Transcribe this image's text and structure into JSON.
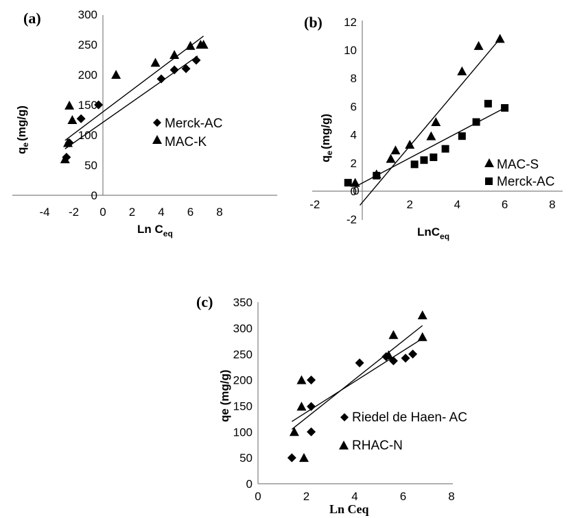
{
  "chart_data": [
    {
      "panel": "(a)",
      "type": "scatter",
      "xlim": [
        -4,
        8
      ],
      "ylim": [
        0,
        300
      ],
      "xticks": [
        -4,
        -2,
        0,
        2,
        4,
        6,
        8
      ],
      "yticks": [
        0,
        50,
        100,
        150,
        200,
        250,
        300
      ],
      "xlabel": "Ln C",
      "xlabel_sub": "eq",
      "ylabel": "q",
      "ylabel_sub": "e",
      "ylabel_rest": "(mg/g)",
      "series": [
        {
          "name": "Merck-AC",
          "marker": "diamond",
          "points": [
            [
              -2.5,
              63
            ],
            [
              -2.3,
              87
            ],
            [
              -1.5,
              127
            ],
            [
              -0.3,
              150
            ],
            [
              4.0,
              193
            ],
            [
              4.9,
              208
            ],
            [
              5.7,
              210
            ],
            [
              6.4,
              224
            ]
          ],
          "fit": [
            [
              -2.6,
              77
            ],
            [
              6.5,
              231
            ]
          ]
        },
        {
          "name": "MAC-K",
          "marker": "triangle",
          "points": [
            [
              -2.6,
              60
            ],
            [
              -2.4,
              87
            ],
            [
              -2.3,
              149
            ],
            [
              -2.1,
              125
            ],
            [
              0.9,
              200
            ],
            [
              3.6,
              220
            ],
            [
              4.9,
              233
            ],
            [
              6.0,
              248
            ],
            [
              6.7,
              250
            ],
            [
              6.9,
              250
            ]
          ],
          "fit": [
            [
              -2.6,
              91
            ],
            [
              6.9,
              264
            ]
          ]
        }
      ],
      "legend": "center-right"
    },
    {
      "panel": "(b)",
      "type": "scatter",
      "xlim": [
        -2,
        8
      ],
      "ylim": [
        -2,
        12
      ],
      "xticks": [
        -2,
        0,
        2,
        4,
        6,
        8
      ],
      "yticks": [
        -2,
        0,
        2,
        4,
        6,
        8,
        10,
        12
      ],
      "xlabel": "LnC",
      "xlabel_sub": "eq",
      "ylabel": "q",
      "ylabel_sub": "e",
      "ylabel_rest": "(mg/g)",
      "series": [
        {
          "name": "MAC-S",
          "marker": "triangle",
          "points": [
            [
              -0.3,
              0.6
            ],
            [
              0.6,
              1.2
            ],
            [
              1.2,
              2.3
            ],
            [
              1.4,
              2.9
            ],
            [
              2.0,
              3.3
            ],
            [
              2.9,
              3.9
            ],
            [
              3.1,
              4.9
            ],
            [
              4.2,
              8.5
            ],
            [
              4.9,
              10.3
            ],
            [
              5.8,
              10.8
            ]
          ],
          "fit": [
            [
              -0.1,
              -1.0
            ],
            [
              5.8,
              10.8
            ]
          ]
        },
        {
          "name": "Merck-AC",
          "marker": "square",
          "points": [
            [
              -0.6,
              0.6
            ],
            [
              0.6,
              1.1
            ],
            [
              2.2,
              1.9
            ],
            [
              2.6,
              2.2
            ],
            [
              3.0,
              2.4
            ],
            [
              3.5,
              3.0
            ],
            [
              4.2,
              3.9
            ],
            [
              4.8,
              4.9
            ],
            [
              5.3,
              6.2
            ],
            [
              6.0,
              5.9
            ]
          ],
          "fit": [
            [
              -0.2,
              0.4
            ],
            [
              6.0,
              5.9
            ]
          ]
        }
      ],
      "legend": "center-right"
    },
    {
      "panel": "(c)",
      "type": "scatter",
      "xlim": [
        0,
        8
      ],
      "ylim": [
        0,
        350
      ],
      "xticks": [
        0,
        2,
        4,
        6,
        8
      ],
      "yticks": [
        0,
        50,
        100,
        150,
        200,
        250,
        300,
        350
      ],
      "xlabel": "Ln Ceq",
      "ylabel": "qe (mg/g)",
      "series": [
        {
          "name": "Riedel de Haen- AC",
          "marker": "diamond",
          "points": [
            [
              1.4,
              50
            ],
            [
              2.2,
              100
            ],
            [
              2.2,
              149
            ],
            [
              2.2,
              200
            ],
            [
              4.2,
              233
            ],
            [
              5.3,
              245
            ],
            [
              5.6,
              237
            ],
            [
              6.1,
              242
            ],
            [
              6.4,
              250
            ]
          ],
          "fit": [
            [
              1.4,
              120
            ],
            [
              6.8,
              280
            ]
          ]
        },
        {
          "name": "RHAC-N",
          "marker": "triangle",
          "points": [
            [
              1.9,
              50
            ],
            [
              1.5,
              100
            ],
            [
              1.8,
              149
            ],
            [
              1.8,
              200
            ],
            [
              5.6,
              287
            ],
            [
              5.4,
              248
            ],
            [
              6.8,
              325
            ],
            [
              6.8,
              283
            ]
          ],
          "fit": [
            [
              1.4,
              105
            ],
            [
              6.8,
              305
            ]
          ]
        }
      ],
      "legend": "center-right"
    }
  ]
}
